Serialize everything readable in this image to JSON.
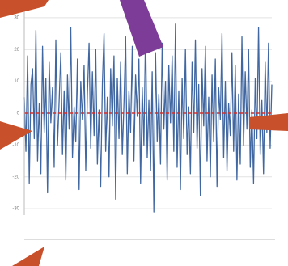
{
  "chart_data": {
    "type": "line",
    "series": [
      {
        "color": "#2b5797",
        "values": [
          5,
          -12,
          18,
          -22,
          9,
          14,
          -8,
          26,
          -15,
          3,
          -19,
          21,
          -6,
          11,
          -25,
          16,
          -3,
          8,
          -17,
          23,
          -10,
          4,
          19,
          -13,
          7,
          -21,
          12,
          -5,
          27,
          -14,
          2,
          -9,
          17,
          -24,
          10,
          -2,
          15,
          -18,
          6,
          22,
          -11,
          13,
          -7,
          20,
          -16,
          1,
          -23,
          9,
          25,
          -12,
          5,
          -20,
          14,
          -4,
          18,
          -27,
          11,
          -8,
          16,
          -13,
          3,
          24,
          -19,
          7,
          -6,
          21,
          -15,
          12,
          -1,
          17,
          -22,
          8,
          -10,
          26,
          -14,
          4,
          -18,
          13,
          -31,
          19,
          -9,
          6,
          -16,
          22,
          -5,
          10,
          -21,
          15,
          -3,
          18,
          -12,
          28,
          -17,
          7,
          -24,
          11,
          -8,
          20,
          -13,
          2,
          -19,
          16,
          -6,
          23,
          -11,
          9,
          -26,
          14,
          -4,
          21,
          -15,
          5,
          -20,
          12,
          -9,
          17,
          -23,
          8,
          -2,
          25,
          -14,
          10,
          -18,
          3,
          -7,
          19,
          -12,
          15,
          -21,
          6,
          -16,
          24,
          -10,
          13,
          -5,
          20,
          -17,
          1,
          -22,
          11,
          -8,
          27,
          -13,
          4,
          -19,
          16,
          -6,
          22,
          -11,
          9
        ]
      }
    ],
    "reference_line": {
      "value": 0,
      "color": "#d0312d"
    },
    "ylim": [
      -32,
      32
    ],
    "yticks": [
      -30,
      -20,
      -10,
      0,
      10,
      20,
      30
    ],
    "grid": true
  }
}
